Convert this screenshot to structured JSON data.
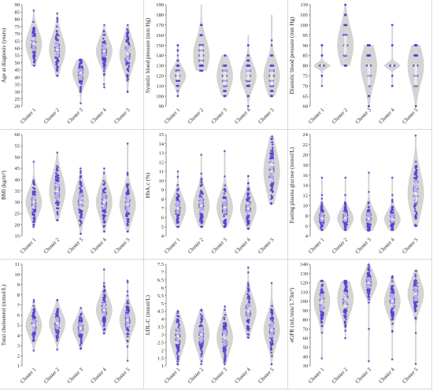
{
  "colors": {
    "points": "#5b3fd6",
    "violin": "#d4d4d4",
    "box": "#ffffff",
    "median": "#f5f5f5"
  },
  "chart_data": [
    {
      "type": "scatter",
      "subtype": "violin-jitter",
      "ylabel": "Age at diagnosis (years)",
      "ylim": [
        20,
        90
      ],
      "yticks": [
        20,
        25,
        30,
        35,
        40,
        45,
        50,
        55,
        60,
        65,
        70,
        75,
        80,
        85,
        90
      ],
      "categories": [
        "Cluster 1",
        "Cluster 2",
        "Cluster 3",
        "Cluster 4",
        "Cluster 5"
      ],
      "series": [
        {
          "category": "Cluster 1",
          "median": 63,
          "q1": 58,
          "q3": 68,
          "min": 48,
          "max": 86
        },
        {
          "category": "Cluster 2",
          "median": 59,
          "q1": 54,
          "q3": 65,
          "min": 41,
          "max": 84
        },
        {
          "category": "Cluster 3",
          "median": 43,
          "q1": 38,
          "q3": 46,
          "min": 22,
          "max": 52
        },
        {
          "category": "Cluster 4",
          "median": 58,
          "q1": 54,
          "q3": 63,
          "min": 33,
          "max": 76
        },
        {
          "category": "Cluster 5",
          "median": 56,
          "q1": 51,
          "q3": 62,
          "min": 30,
          "max": 76
        }
      ]
    },
    {
      "type": "scatter",
      "subtype": "violin-jitter",
      "ylabel": "Systolic blood pressure (mm Hg)",
      "ylim": [
        90,
        190
      ],
      "yticks": [
        90,
        100,
        110,
        120,
        130,
        140,
        150,
        160,
        170,
        180,
        190
      ],
      "categories": [
        "Cluster 1",
        "Cluster 2",
        "Cluster 3",
        "Cluster 4",
        "Cluster 5"
      ],
      "series": [
        {
          "category": "Cluster 1",
          "median": 120,
          "q1": 116,
          "q3": 125,
          "min": 100,
          "max": 150,
          "levels": [
            100,
            105,
            110,
            115,
            120,
            125,
            130,
            135,
            140,
            145,
            150
          ]
        },
        {
          "category": "Cluster 2",
          "median": 140,
          "q1": 132,
          "q3": 150,
          "min": 125,
          "max": 190,
          "levels": [
            125,
            130,
            135,
            140,
            145,
            150,
            160,
            170,
            180,
            190
          ]
        },
        {
          "category": "Cluster 3",
          "median": 120,
          "q1": 110,
          "q3": 126,
          "min": 100,
          "max": 140,
          "levels": [
            100,
            105,
            110,
            115,
            120,
            125,
            130,
            140
          ]
        },
        {
          "category": "Cluster 4",
          "median": 120,
          "q1": 115,
          "q3": 128,
          "min": 90,
          "max": 160,
          "levels": [
            90,
            100,
            110,
            115,
            120,
            125,
            130,
            135,
            140,
            150,
            160
          ]
        },
        {
          "category": "Cluster 5",
          "median": 120,
          "q1": 110,
          "q3": 126,
          "min": 100,
          "max": 180,
          "levels": [
            100,
            105,
            110,
            115,
            120,
            125,
            130,
            140,
            150,
            155,
            180
          ]
        }
      ]
    },
    {
      "type": "scatter",
      "subtype": "violin-jitter",
      "ylabel": "Diastolic blood pressure (mm Hg)",
      "ylim": [
        60,
        110
      ],
      "yticks": [
        60,
        65,
        70,
        75,
        80,
        85,
        90,
        95,
        100,
        105,
        110
      ],
      "categories": [
        "Cluster 1",
        "Cluster 2",
        "Cluster 3",
        "Cluster 4",
        "Cluster 5"
      ],
      "series": [
        {
          "category": "Cluster 1",
          "median": 80,
          "q1": 80,
          "q3": 80,
          "min": 70,
          "max": 90,
          "levels": [
            70,
            75,
            80,
            85,
            90
          ]
        },
        {
          "category": "Cluster 2",
          "median": 90,
          "q1": 85,
          "q3": 95,
          "min": 80,
          "max": 110,
          "levels": [
            80,
            85,
            90,
            95,
            100,
            105,
            110
          ]
        },
        {
          "category": "Cluster 3",
          "median": 80,
          "q1": 70,
          "q3": 80,
          "min": 60,
          "max": 90,
          "levels": [
            60,
            65,
            70,
            75,
            80,
            85,
            90
          ]
        },
        {
          "category": "Cluster 4",
          "median": 80,
          "q1": 80,
          "q3": 80,
          "min": 70,
          "max": 100,
          "levels": [
            70,
            75,
            80,
            85,
            90,
            100
          ]
        },
        {
          "category": "Cluster 5",
          "median": 80,
          "q1": 70,
          "q3": 80,
          "min": 60,
          "max": 90,
          "levels": [
            60,
            70,
            75,
            80,
            85,
            90
          ]
        }
      ]
    },
    {
      "type": "scatter",
      "subtype": "violin-jitter",
      "ylabel": "BMI (kg/m²)",
      "ylim": [
        15,
        60
      ],
      "yticks": [
        15,
        20,
        25,
        30,
        35,
        40,
        45,
        50,
        55,
        60
      ],
      "categories": [
        "Cluster 1",
        "Cluster 2",
        "Cluster 3",
        "Cluster 4",
        "Cluster 5"
      ],
      "series": [
        {
          "category": "Cluster 1",
          "median": 30,
          "q1": 27,
          "q3": 33,
          "min": 19,
          "max": 48
        },
        {
          "category": "Cluster 2",
          "median": 35,
          "q1": 31,
          "q3": 39,
          "min": 22,
          "max": 52
        },
        {
          "category": "Cluster 3",
          "median": 30,
          "q1": 27,
          "q3": 34,
          "min": 16,
          "max": 45
        },
        {
          "category": "Cluster 4",
          "median": 30,
          "q1": 27,
          "q3": 34,
          "min": 17,
          "max": 45
        },
        {
          "category": "Cluster 5",
          "median": 29,
          "q1": 26,
          "q3": 33,
          "min": 17,
          "max": 56
        }
      ]
    },
    {
      "type": "scatter",
      "subtype": "violin-jitter",
      "ylabel": "HbA₁c (%)",
      "ylim": [
        4,
        15
      ],
      "yticks": [
        4,
        5,
        6,
        7,
        8,
        9,
        10,
        11,
        12,
        13,
        14,
        15
      ],
      "categories": [
        "Cluster 1",
        "Cluster 2",
        "Cluster 3",
        "Cluster 4",
        "Cluster 5"
      ],
      "series": [
        {
          "category": "Cluster 1",
          "median": 7.0,
          "q1": 6.4,
          "q3": 7.8,
          "min": 5.0,
          "max": 11.0
        },
        {
          "category": "Cluster 2",
          "median": 7.3,
          "q1": 6.5,
          "q3": 8.2,
          "min": 5.0,
          "max": 12.8
        },
        {
          "category": "Cluster 3",
          "median": 7.1,
          "q1": 6.4,
          "q3": 8.0,
          "min": 5.0,
          "max": 13.2
        },
        {
          "category": "Cluster 4",
          "median": 7.0,
          "q1": 6.3,
          "q3": 7.7,
          "min": 4.8,
          "max": 10.5
        },
        {
          "category": "Cluster 5",
          "median": 11.0,
          "q1": 9.8,
          "q3": 12.3,
          "min": 7.5,
          "max": 14.8
        }
      ]
    },
    {
      "type": "scatter",
      "subtype": "violin-jitter",
      "ylabel": "Fasting plasma glucose (mmol/L)",
      "ylim": [
        4,
        24
      ],
      "yticks": [
        4,
        6,
        8,
        10,
        12,
        14,
        16,
        18,
        20,
        22,
        24
      ],
      "categories": [
        "Cluster 1",
        "Cluster 2",
        "Cluster 3",
        "Cluster 4",
        "Cluster 5"
      ],
      "series": [
        {
          "category": "Cluster 1",
          "median": 7.5,
          "q1": 6.8,
          "q3": 8.6,
          "min": 5.2,
          "max": 15.5
        },
        {
          "category": "Cluster 2",
          "median": 7.5,
          "q1": 6.8,
          "q3": 8.6,
          "min": 5.2,
          "max": 15.5
        },
        {
          "category": "Cluster 3",
          "median": 7.4,
          "q1": 6.6,
          "q3": 8.7,
          "min": 5.1,
          "max": 16.5
        },
        {
          "category": "Cluster 4",
          "median": 7.3,
          "q1": 6.6,
          "q3": 8.4,
          "min": 5.2,
          "max": 15.5
        },
        {
          "category": "Cluster 5",
          "median": 12.5,
          "q1": 10.5,
          "q3": 15.0,
          "min": 6.0,
          "max": 23.8
        }
      ]
    },
    {
      "type": "scatter",
      "subtype": "violin-jitter",
      "ylabel": "Total cholesterol (mmol/L)",
      "ylim": [
        1,
        11
      ],
      "yticks": [
        1,
        2,
        3,
        4,
        5,
        6,
        7,
        8,
        9,
        10,
        11
      ],
      "categories": [
        "Cluster 1",
        "Cluster 2",
        "Cluster 3",
        "Cluster 4",
        "Cluster 5"
      ],
      "series": [
        {
          "category": "Cluster 1",
          "median": 5.0,
          "q1": 4.4,
          "q3": 5.6,
          "min": 2.5,
          "max": 7.5
        },
        {
          "category": "Cluster 2",
          "median": 5.2,
          "q1": 4.6,
          "q3": 5.8,
          "min": 2.6,
          "max": 7.5
        },
        {
          "category": "Cluster 3",
          "median": 4.7,
          "q1": 4.2,
          "q3": 5.3,
          "min": 2.7,
          "max": 6.7
        },
        {
          "category": "Cluster 4",
          "median": 6.5,
          "q1": 5.9,
          "q3": 7.2,
          "min": 4.2,
          "max": 10.5
        },
        {
          "category": "Cluster 5",
          "median": 5.5,
          "q1": 4.8,
          "q3": 6.1,
          "min": 1.5,
          "max": 9.4
        }
      ]
    },
    {
      "type": "scatter",
      "subtype": "violin-jitter",
      "ylabel": "LDL-C (mmol/L)",
      "ylim": [
        1,
        7.5
      ],
      "yticks": [
        1,
        1.5,
        2,
        2.5,
        3,
        3.5,
        4,
        4.5,
        5,
        5.5,
        6,
        6.5,
        7,
        7.5
      ],
      "categories": [
        "Cluster 1",
        "Cluster 2",
        "Cluster 3",
        "Cluster 4",
        "Cluster 5"
      ],
      "series": [
        {
          "category": "Cluster 1",
          "median": 2.9,
          "q1": 2.4,
          "q3": 3.4,
          "min": 1.1,
          "max": 4.5
        },
        {
          "category": "Cluster 2",
          "median": 3.0,
          "q1": 2.5,
          "q3": 3.5,
          "min": 1.1,
          "max": 4.6
        },
        {
          "category": "Cluster 3",
          "median": 2.8,
          "q1": 2.3,
          "q3": 3.3,
          "min": 1.1,
          "max": 4.8
        },
        {
          "category": "Cluster 4",
          "median": 4.5,
          "q1": 4.0,
          "q3": 5.0,
          "min": 2.8,
          "max": 7.3
        },
        {
          "category": "Cluster 5",
          "median": 3.3,
          "q1": 2.8,
          "q3": 3.8,
          "min": 1.1,
          "max": 6.3
        }
      ]
    },
    {
      "type": "scatter",
      "subtype": "violin-jitter",
      "ylabel": "eGFR (mL/min/1.73m²)",
      "ylim": [
        30,
        140
      ],
      "yticks": [
        30,
        40,
        50,
        60,
        70,
        80,
        90,
        100,
        110,
        120,
        130,
        140
      ],
      "categories": [
        "Cluster 1",
        "Cluster 2",
        "Cluster 3",
        "Cluster 4",
        "Cluster 5"
      ],
      "series": [
        {
          "category": "Cluster 1",
          "median": 100,
          "q1": 90,
          "q3": 108,
          "min": 38,
          "max": 122
        },
        {
          "category": "Cluster 2",
          "median": 103,
          "q1": 92,
          "q3": 110,
          "min": 60,
          "max": 122
        },
        {
          "category": "Cluster 3",
          "median": 120,
          "q1": 114,
          "q3": 126,
          "min": 35,
          "max": 140
        },
        {
          "category": "Cluster 4",
          "median": 100,
          "q1": 93,
          "q3": 108,
          "min": 37,
          "max": 127
        },
        {
          "category": "Cluster 5",
          "median": 108,
          "q1": 100,
          "q3": 116,
          "min": 32,
          "max": 133
        }
      ]
    }
  ]
}
